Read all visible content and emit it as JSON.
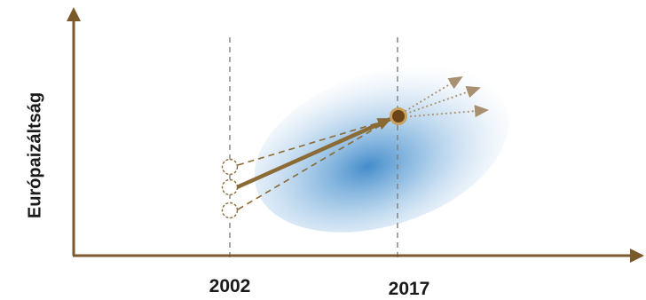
{
  "diagram": {
    "y_axis_label": "Európaizáltság",
    "x_ticks": [
      "2002",
      "2017"
    ],
    "colors": {
      "axis": "#7a5a2a",
      "main_arrow": "#8a6a35",
      "projection_arrow": "#a89070",
      "marker_fill": "#6b4418",
      "marker_ring": "#c8a060",
      "cloud": "#3a86c8",
      "guide": "#7f7f7f"
    }
  }
}
